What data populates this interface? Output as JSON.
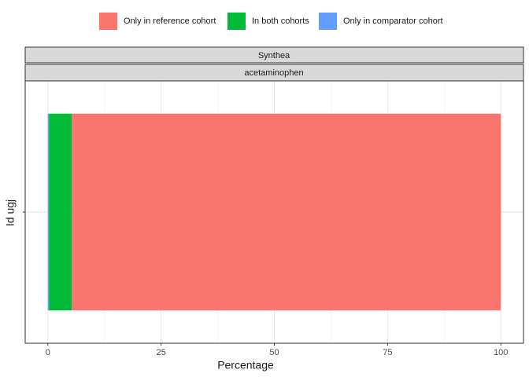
{
  "chart_data": {
    "type": "stacked-bar-horizontal",
    "facets": [
      "Synthea",
      "acetaminophen"
    ],
    "categories": [
      null
    ],
    "series": [
      {
        "name": "Only in reference cohort",
        "color": "#F8766D",
        "values": [
          94.7
        ]
      },
      {
        "name": "In both cohorts",
        "color": "#00BA38",
        "values": [
          5.0
        ]
      },
      {
        "name": "Only in comparator cohort",
        "color": "#619CFF",
        "values": [
          0.3
        ]
      }
    ],
    "x_label": "Percentage",
    "y_label": "Id ugj",
    "xlim": [
      -5,
      105
    ],
    "xticks": [
      0,
      25,
      50,
      75,
      100
    ],
    "xminor": [
      12.5,
      37.5,
      62.5,
      87.5
    ],
    "grid": true,
    "legend": "top"
  }
}
